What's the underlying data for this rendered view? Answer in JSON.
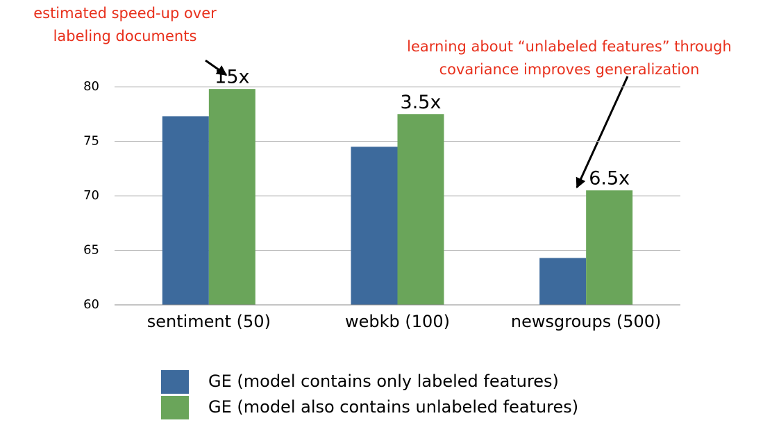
{
  "chart_data": {
    "type": "bar",
    "categories": [
      "sentiment (50)",
      "webkb (100)",
      "newsgroups (500)"
    ],
    "series": [
      {
        "name": "GE (model contains only labeled features)",
        "color": "#3d6a9c",
        "values": [
          77.3,
          74.5,
          64.3
        ]
      },
      {
        "name": "GE (model also contains unlabeled features)",
        "color": "#6aa55a",
        "values": [
          79.8,
          77.5,
          70.5
        ]
      }
    ],
    "speedup_labels": [
      "15x",
      "3.5x",
      "6.5x"
    ],
    "annotations": [
      {
        "lines": [
          "estimated speed-up over",
          "labeling documents"
        ],
        "color": "#e8301c"
      },
      {
        "lines": [
          "learning about “unlabeled features” through",
          "covariance improves generalization"
        ],
        "color": "#e8301c"
      }
    ],
    "ylim": [
      60,
      80
    ],
    "yticks": [
      60,
      65,
      70,
      75,
      80
    ],
    "grid": true
  }
}
